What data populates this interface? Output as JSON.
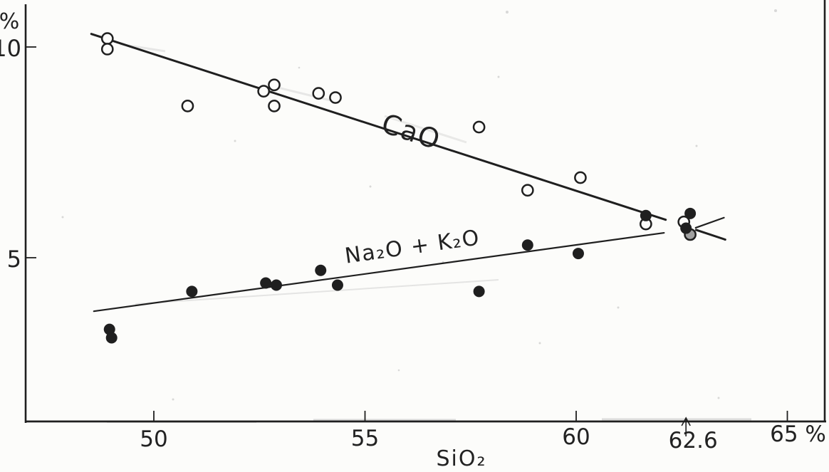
{
  "figure": {
    "kind": "scanned scatter plot",
    "background": "#fcfcfa",
    "ink_color": "#1f1f1f",
    "grey_marker_color": "#a0a0a0"
  },
  "chart_data": {
    "type": "scatter",
    "title": "",
    "xlabel": "SiO₂",
    "ylabel": "%",
    "xlim": [
      47,
      66
    ],
    "ylim": [
      1.1,
      11.1
    ],
    "grid": false,
    "legend_position": "inline-labels",
    "x_ticks": [
      {
        "value": 50,
        "label": "50"
      },
      {
        "value": 55,
        "label": "55"
      },
      {
        "value": 60,
        "label": "60"
      },
      {
        "value": 65,
        "label": "65 %"
      }
    ],
    "y_ticks": [
      {
        "value": 5,
        "label": "5"
      },
      {
        "value": 10,
        "label": "10"
      }
    ],
    "annotation": {
      "x": 62.6,
      "label": "62.6",
      "symbol": "up-arrow"
    },
    "series": [
      {
        "name": "CaO",
        "marker": "open-circle",
        "label": {
          "text": "CaO",
          "x": 55.35,
          "y": 8.0,
          "angle": 18
        },
        "points": [
          {
            "x": 48.9,
            "y": 10.2
          },
          {
            "x": 48.9,
            "y": 9.95
          },
          {
            "x": 50.8,
            "y": 8.6
          },
          {
            "x": 52.6,
            "y": 8.95
          },
          {
            "x": 52.85,
            "y": 9.1
          },
          {
            "x": 52.85,
            "y": 8.6
          },
          {
            "x": 53.9,
            "y": 8.9
          },
          {
            "x": 54.3,
            "y": 8.8
          },
          {
            "x": 57.7,
            "y": 8.1
          },
          {
            "x": 58.85,
            "y": 6.6
          },
          {
            "x": 60.1,
            "y": 6.9
          },
          {
            "x": 61.65,
            "y": 5.8
          },
          {
            "x": 62.55,
            "y": 5.85
          },
          {
            "x": 62.7,
            "y": 5.55,
            "fill": "grey"
          }
        ],
        "trend_segments": [
          {
            "x1": 48.52,
            "y1": 10.31,
            "x2": 62.12,
            "y2": 5.9
          },
          {
            "x1": 62.84,
            "y1": 5.66,
            "x2": 63.53,
            "y2": 5.43
          }
        ]
      },
      {
        "name": "Na₂O + K₂O",
        "marker": "filled-circle",
        "label": {
          "text": "Na₂O + K₂O",
          "x": 54.55,
          "y": 4.87,
          "angle": -8
        },
        "points": [
          {
            "x": 48.95,
            "y": 3.3
          },
          {
            "x": 49.0,
            "y": 3.1
          },
          {
            "x": 50.9,
            "y": 4.2
          },
          {
            "x": 52.65,
            "y": 4.4
          },
          {
            "x": 52.9,
            "y": 4.35
          },
          {
            "x": 53.95,
            "y": 4.7
          },
          {
            "x": 54.35,
            "y": 4.35
          },
          {
            "x": 57.7,
            "y": 4.2
          },
          {
            "x": 58.85,
            "y": 5.3
          },
          {
            "x": 60.05,
            "y": 5.1
          },
          {
            "x": 61.65,
            "y": 6.0
          },
          {
            "x": 62.6,
            "y": 5.7
          },
          {
            "x": 62.7,
            "y": 6.05
          }
        ],
        "trend_segments": [
          {
            "x1": 48.58,
            "y1": 3.73,
            "x2": 62.08,
            "y2": 5.59
          },
          {
            "x1": 62.83,
            "y1": 5.71,
            "x2": 63.5,
            "y2": 5.95
          }
        ]
      }
    ]
  }
}
